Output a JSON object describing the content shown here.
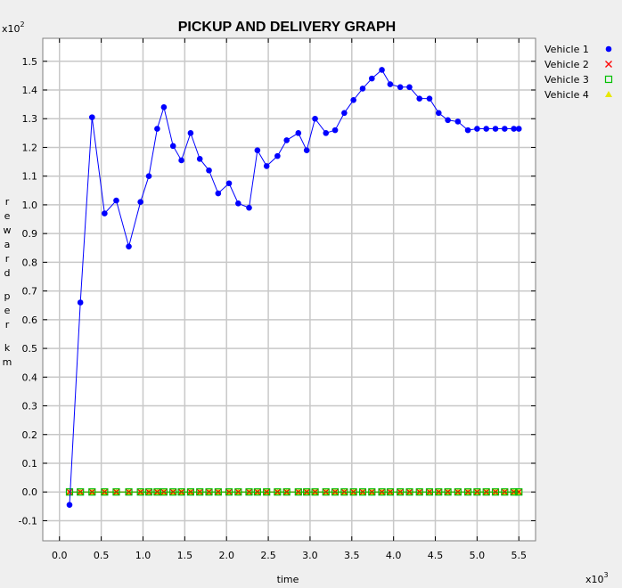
{
  "chart_data": {
    "type": "line",
    "title": "PICKUP AND DELIVERY GRAPH",
    "xlabel": "time",
    "ylabel": "reward per km",
    "x_multiplier_base": "x10",
    "x_multiplier_exp": "3",
    "y_multiplier_base": "x10",
    "y_multiplier_exp": "2",
    "xlim": [
      -0.2,
      5.7
    ],
    "ylim": [
      -0.17,
      1.58
    ],
    "x_ticks": [
      0.0,
      0.5,
      1.0,
      1.5,
      2.0,
      2.5,
      3.0,
      3.5,
      4.0,
      4.5,
      5.0,
      5.5
    ],
    "x_tick_labels": [
      "0.0",
      "0.5",
      "1.0",
      "1.5",
      "2.0",
      "2.5",
      "3.0",
      "3.5",
      "4.0",
      "4.5",
      "5.0",
      "5.5"
    ],
    "y_ticks": [
      -0.1,
      0.0,
      0.1,
      0.2,
      0.3,
      0.4,
      0.5,
      0.6,
      0.7,
      0.8,
      0.9,
      1.0,
      1.1,
      1.2,
      1.3,
      1.4,
      1.5
    ],
    "y_tick_labels": [
      "-0.1",
      "0.0",
      "0.1",
      "0.2",
      "0.3",
      "0.4",
      "0.5",
      "0.6",
      "0.7",
      "0.8",
      "0.9",
      "1.0",
      "1.1",
      "1.2",
      "1.3",
      "1.4",
      "1.5"
    ],
    "grid": true,
    "legend_position": "right",
    "series": [
      {
        "name": "Vehicle 1",
        "color": "#0000ff",
        "marker": "circle",
        "x": [
          0.12,
          0.25,
          0.39,
          0.54,
          0.68,
          0.83,
          0.97,
          1.07,
          1.17,
          1.25,
          1.36,
          1.46,
          1.57,
          1.68,
          1.79,
          1.9,
          2.03,
          2.14,
          2.27,
          2.37,
          2.48,
          2.61,
          2.72,
          2.86,
          2.96,
          3.06,
          3.19,
          3.3,
          3.41,
          3.52,
          3.63,
          3.74,
          3.86,
          3.96,
          4.08,
          4.19,
          4.31,
          4.43,
          4.54,
          4.65,
          4.77,
          4.89,
          5.0,
          5.11,
          5.22,
          5.33,
          5.44,
          5.5
        ],
        "y": [
          -0.045,
          0.66,
          1.305,
          0.97,
          1.015,
          0.855,
          1.01,
          1.1,
          1.265,
          1.34,
          1.205,
          1.155,
          1.25,
          1.16,
          1.12,
          1.04,
          1.075,
          1.005,
          0.99,
          1.19,
          1.135,
          1.17,
          1.225,
          1.25,
          1.19,
          1.3,
          1.25,
          1.26,
          1.32,
          1.365,
          1.405,
          1.44,
          1.47,
          1.42,
          1.41,
          1.41,
          1.37,
          1.37,
          1.32,
          1.295,
          1.29,
          1.26,
          1.265,
          1.265,
          1.265,
          1.265,
          1.265,
          1.265
        ]
      },
      {
        "name": "Vehicle 2",
        "color": "#ff0000",
        "marker": "x",
        "x": [
          0.12,
          0.25,
          0.39,
          0.54,
          0.68,
          0.83,
          0.97,
          1.07,
          1.17,
          1.25,
          1.36,
          1.46,
          1.57,
          1.68,
          1.79,
          1.9,
          2.03,
          2.14,
          2.27,
          2.37,
          2.48,
          2.61,
          2.72,
          2.86,
          2.96,
          3.06,
          3.19,
          3.3,
          3.41,
          3.52,
          3.63,
          3.74,
          3.86,
          3.96,
          4.08,
          4.19,
          4.31,
          4.43,
          4.54,
          4.65,
          4.77,
          4.89,
          5.0,
          5.11,
          5.22,
          5.33,
          5.44,
          5.5
        ],
        "y": [
          0,
          0,
          0,
          0,
          0,
          0,
          0,
          0,
          0,
          0,
          0,
          0,
          0,
          0,
          0,
          0,
          0,
          0,
          0,
          0,
          0,
          0,
          0,
          0,
          0,
          0,
          0,
          0,
          0,
          0,
          0,
          0,
          0,
          0,
          0,
          0,
          0,
          0,
          0,
          0,
          0,
          0,
          0,
          0,
          0,
          0,
          0,
          0
        ]
      },
      {
        "name": "Vehicle 3",
        "color": "#00c000",
        "marker": "square",
        "x": [
          0.12,
          0.25,
          0.39,
          0.54,
          0.68,
          0.83,
          0.97,
          1.07,
          1.17,
          1.25,
          1.36,
          1.46,
          1.57,
          1.68,
          1.79,
          1.9,
          2.03,
          2.14,
          2.27,
          2.37,
          2.48,
          2.61,
          2.72,
          2.86,
          2.96,
          3.06,
          3.19,
          3.3,
          3.41,
          3.52,
          3.63,
          3.74,
          3.86,
          3.96,
          4.08,
          4.19,
          4.31,
          4.43,
          4.54,
          4.65,
          4.77,
          4.89,
          5.0,
          5.11,
          5.22,
          5.33,
          5.44,
          5.5
        ],
        "y": [
          0,
          0,
          0,
          0,
          0,
          0,
          0,
          0,
          0,
          0,
          0,
          0,
          0,
          0,
          0,
          0,
          0,
          0,
          0,
          0,
          0,
          0,
          0,
          0,
          0,
          0,
          0,
          0,
          0,
          0,
          0,
          0,
          0,
          0,
          0,
          0,
          0,
          0,
          0,
          0,
          0,
          0,
          0,
          0,
          0,
          0,
          0,
          0
        ]
      },
      {
        "name": "Vehicle 4",
        "color": "#e8e800",
        "marker": "triangle",
        "x": [
          0.12,
          0.25,
          0.39,
          0.54,
          0.68,
          0.83,
          0.97,
          1.07,
          1.17,
          1.25,
          1.36,
          1.46,
          1.57,
          1.68,
          1.79,
          1.9,
          2.03,
          2.14,
          2.27,
          2.37,
          2.48,
          2.61,
          2.72,
          2.86,
          2.96,
          3.06,
          3.19,
          3.3,
          3.41,
          3.52,
          3.63,
          3.74,
          3.86,
          3.96,
          4.08,
          4.19,
          4.31,
          4.43,
          4.54,
          4.65,
          4.77,
          4.89,
          5.0,
          5.11,
          5.22,
          5.33,
          5.44,
          5.5
        ],
        "y": [
          0,
          0,
          0,
          0,
          0,
          0,
          0,
          0,
          0,
          0,
          0,
          0,
          0,
          0,
          0,
          0,
          0,
          0,
          0,
          0,
          0,
          0,
          0,
          0,
          0,
          0,
          0,
          0,
          0,
          0,
          0,
          0,
          0,
          0,
          0,
          0,
          0,
          0,
          0,
          0,
          0,
          0,
          0,
          0,
          0,
          0,
          0,
          0
        ]
      }
    ]
  }
}
